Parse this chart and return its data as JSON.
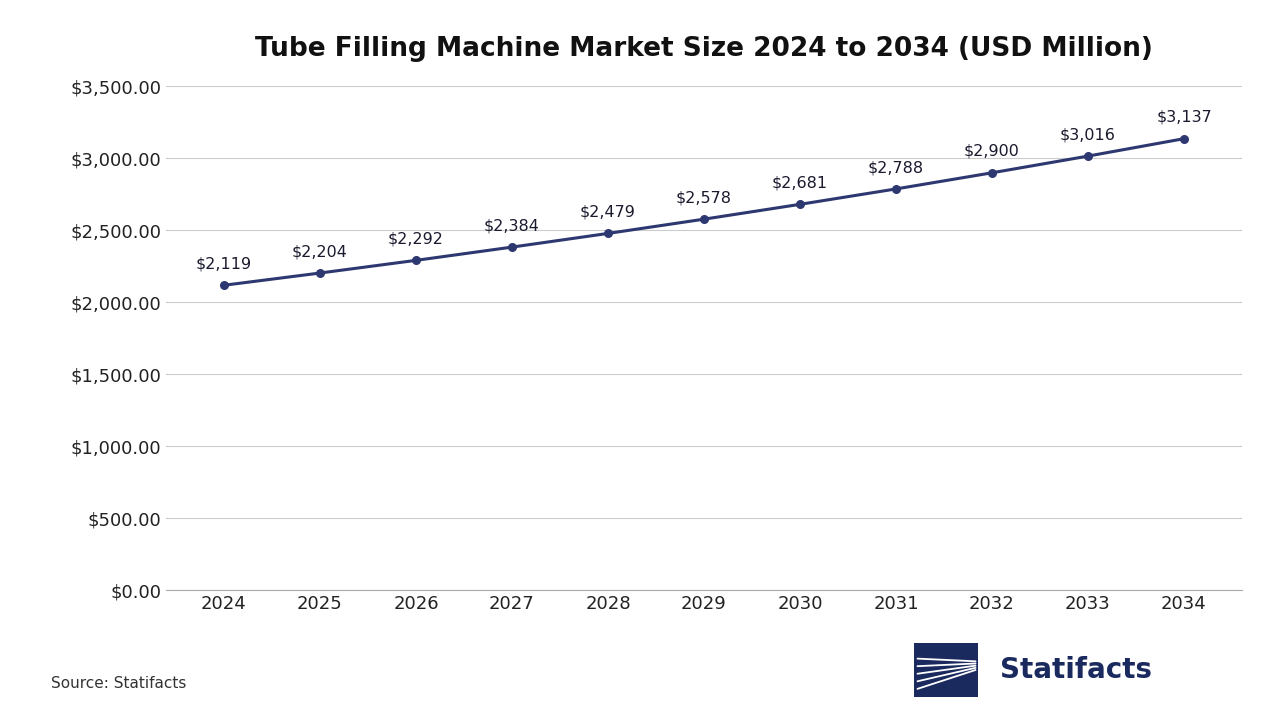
{
  "title": "Tube Filling Machine Market Size 2024 to 2034 (USD Million)",
  "years": [
    2024,
    2025,
    2026,
    2027,
    2028,
    2029,
    2030,
    2031,
    2032,
    2033,
    2034
  ],
  "values": [
    2119,
    2204,
    2292,
    2384,
    2479,
    2578,
    2681,
    2788,
    2900,
    3016,
    3137
  ],
  "labels": [
    "$2,119",
    "$2,204",
    "$2,292",
    "$2,384",
    "$2,479",
    "$2,578",
    "$2,681",
    "$2,788",
    "$2,900",
    "$3,016",
    "$3,137"
  ],
  "line_color": "#2e3870",
  "marker_color": "#2e3870",
  "background_color": "#ffffff",
  "grid_color": "#cccccc",
  "title_fontsize": 19,
  "label_fontsize": 11.5,
  "tick_fontsize": 13,
  "source_text": "Source: Statifacts",
  "ylim": [
    0,
    3500
  ],
  "yticks": [
    0,
    500,
    1000,
    1500,
    2000,
    2500,
    3000,
    3500
  ],
  "ytick_labels": [
    "$0.00",
    "$500.00",
    "$1,000.00",
    "$1,500.00",
    "$2,000.00",
    "$2,500.00",
    "$3,000.00",
    "$3,500.00"
  ],
  "logo_color": "#1a2a5e",
  "logo_text": "Statifacts",
  "logo_fontsize": 20
}
